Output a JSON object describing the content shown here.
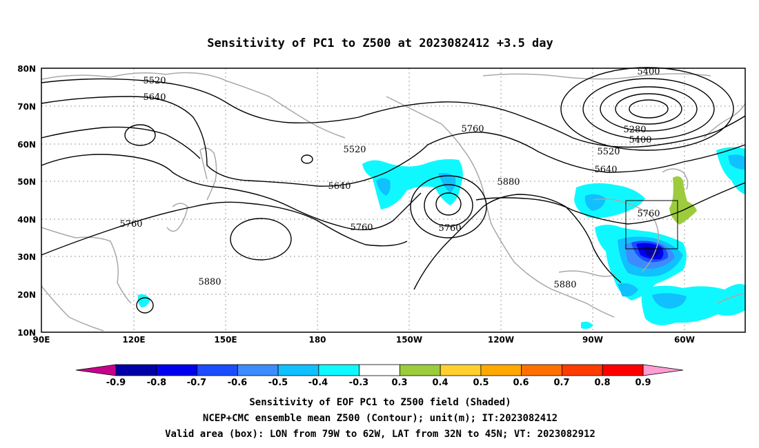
{
  "title": "Sensitivity of PC1 to Z500 at 2023082412 +3.5 day",
  "axes": {
    "lat_labels": [
      "80N",
      "70N",
      "60N",
      "50N",
      "40N",
      "30N",
      "20N",
      "10N"
    ],
    "lon_labels": [
      "90E",
      "120E",
      "150E",
      "180",
      "150W",
      "120W",
      "90W",
      "60W"
    ]
  },
  "contour_labels": [
    "5400",
    "5520",
    "5640",
    "5280",
    "5400",
    "5520",
    "5640",
    "5760",
    "5520",
    "5640",
    "5760",
    "5760",
    "5760",
    "5880",
    "5760",
    "5880",
    "5880"
  ],
  "colorbar": {
    "labels": [
      "-0.9",
      "-0.8",
      "-0.7",
      "-0.6",
      "-0.5",
      "-0.4",
      "-0.3",
      "0.3",
      "0.4",
      "0.5",
      "0.6",
      "0.7",
      "0.8",
      "0.9"
    ],
    "colors": [
      "#0000a8",
      "#0000f0",
      "#1c4cff",
      "#3c8cff",
      "#10c0ff",
      "#10f8ff",
      "#ffffff",
      "#9ccc3c",
      "#ffd030",
      "#ffa800",
      "#ff7000",
      "#ff3c00",
      "#ff0000"
    ],
    "end_low_color": "#c8008c",
    "end_high_color": "#ff9ed2"
  },
  "footer": {
    "line1": "Sensitivity of EOF PC1 to Z500 field (Shaded)",
    "line2": "NCEP+CMC ensemble mean Z500 (Contour); unit(m); IT:2023082412",
    "line3": "Valid area (box): LON from 79W to 62W, LAT from 32N to 45N; VT: 2023082912"
  }
}
